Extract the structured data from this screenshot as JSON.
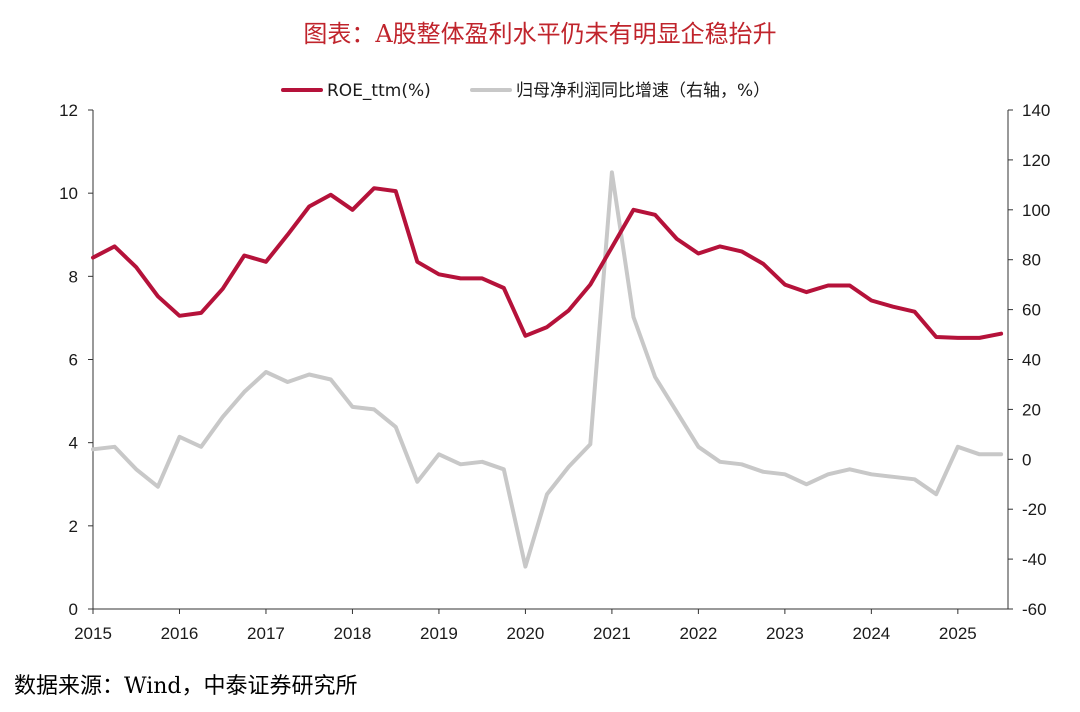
{
  "title": "图表：A股整体盈利水平仍未有明显企稳抬升",
  "source": "数据来源：Wind，中泰证券研究所",
  "colors": {
    "roe": "#b5123a",
    "growth": "#c8c8c8",
    "title": "#c0242c",
    "axis": "#333333"
  },
  "chart_data": {
    "type": "line",
    "x_ticks": [
      "2015",
      "2016",
      "2017",
      "2018",
      "2019",
      "2020",
      "2021",
      "2022",
      "2023",
      "2024",
      "2025"
    ],
    "x": [
      2015.0,
      2015.25,
      2015.5,
      2015.75,
      2016.0,
      2016.25,
      2016.5,
      2016.75,
      2017.0,
      2017.25,
      2017.5,
      2017.75,
      2018.0,
      2018.25,
      2018.5,
      2018.75,
      2019.0,
      2019.25,
      2019.5,
      2019.75,
      2020.0,
      2020.25,
      2020.5,
      2020.75,
      2021.0,
      2021.25,
      2021.5,
      2021.75,
      2022.0,
      2022.25,
      2022.5,
      2022.75,
      2023.0,
      2023.25,
      2023.5,
      2023.75,
      2024.0,
      2024.25,
      2024.5,
      2024.75,
      2025.0,
      2025.25,
      2025.5
    ],
    "xlim": [
      2015.0,
      2025.58
    ],
    "y_left": {
      "ticks": [
        "0",
        "2",
        "4",
        "6",
        "8",
        "10",
        "12"
      ],
      "ylim": [
        0,
        12
      ]
    },
    "y_right": {
      "ticks": [
        "-60",
        "-40",
        "-20",
        "0",
        "20",
        "40",
        "60",
        "80",
        "100",
        "120",
        "140"
      ],
      "ylim": [
        -60,
        140
      ]
    },
    "series": [
      {
        "name": "ROE_ttm(%)",
        "axis": "left",
        "values": [
          8.45,
          8.72,
          8.22,
          7.52,
          7.05,
          7.12,
          7.7,
          8.5,
          8.35,
          9.0,
          9.68,
          9.96,
          9.6,
          10.12,
          10.05,
          8.35,
          8.05,
          7.95,
          7.95,
          7.72,
          6.57,
          6.78,
          7.18,
          7.8,
          8.7,
          9.6,
          9.48,
          8.9,
          8.55,
          8.72,
          8.6,
          8.3,
          7.8,
          7.62,
          7.78,
          7.78,
          7.42,
          7.27,
          7.15,
          6.54,
          6.52,
          6.52,
          6.62
        ]
      },
      {
        "name": "归母净利润同比增速（右轴，%）",
        "axis": "right",
        "values": [
          4,
          5,
          -4,
          -11,
          9,
          5,
          17,
          27,
          35,
          31,
          34,
          32,
          21,
          20,
          13,
          -9,
          2,
          -2,
          -1,
          -4,
          -43,
          -14,
          -3,
          6,
          115,
          57,
          33,
          19,
          5,
          -1,
          -2,
          -5,
          -6,
          -10,
          -6,
          -4,
          -6,
          -7,
          -8,
          -14,
          5,
          2,
          2
        ]
      }
    ]
  }
}
